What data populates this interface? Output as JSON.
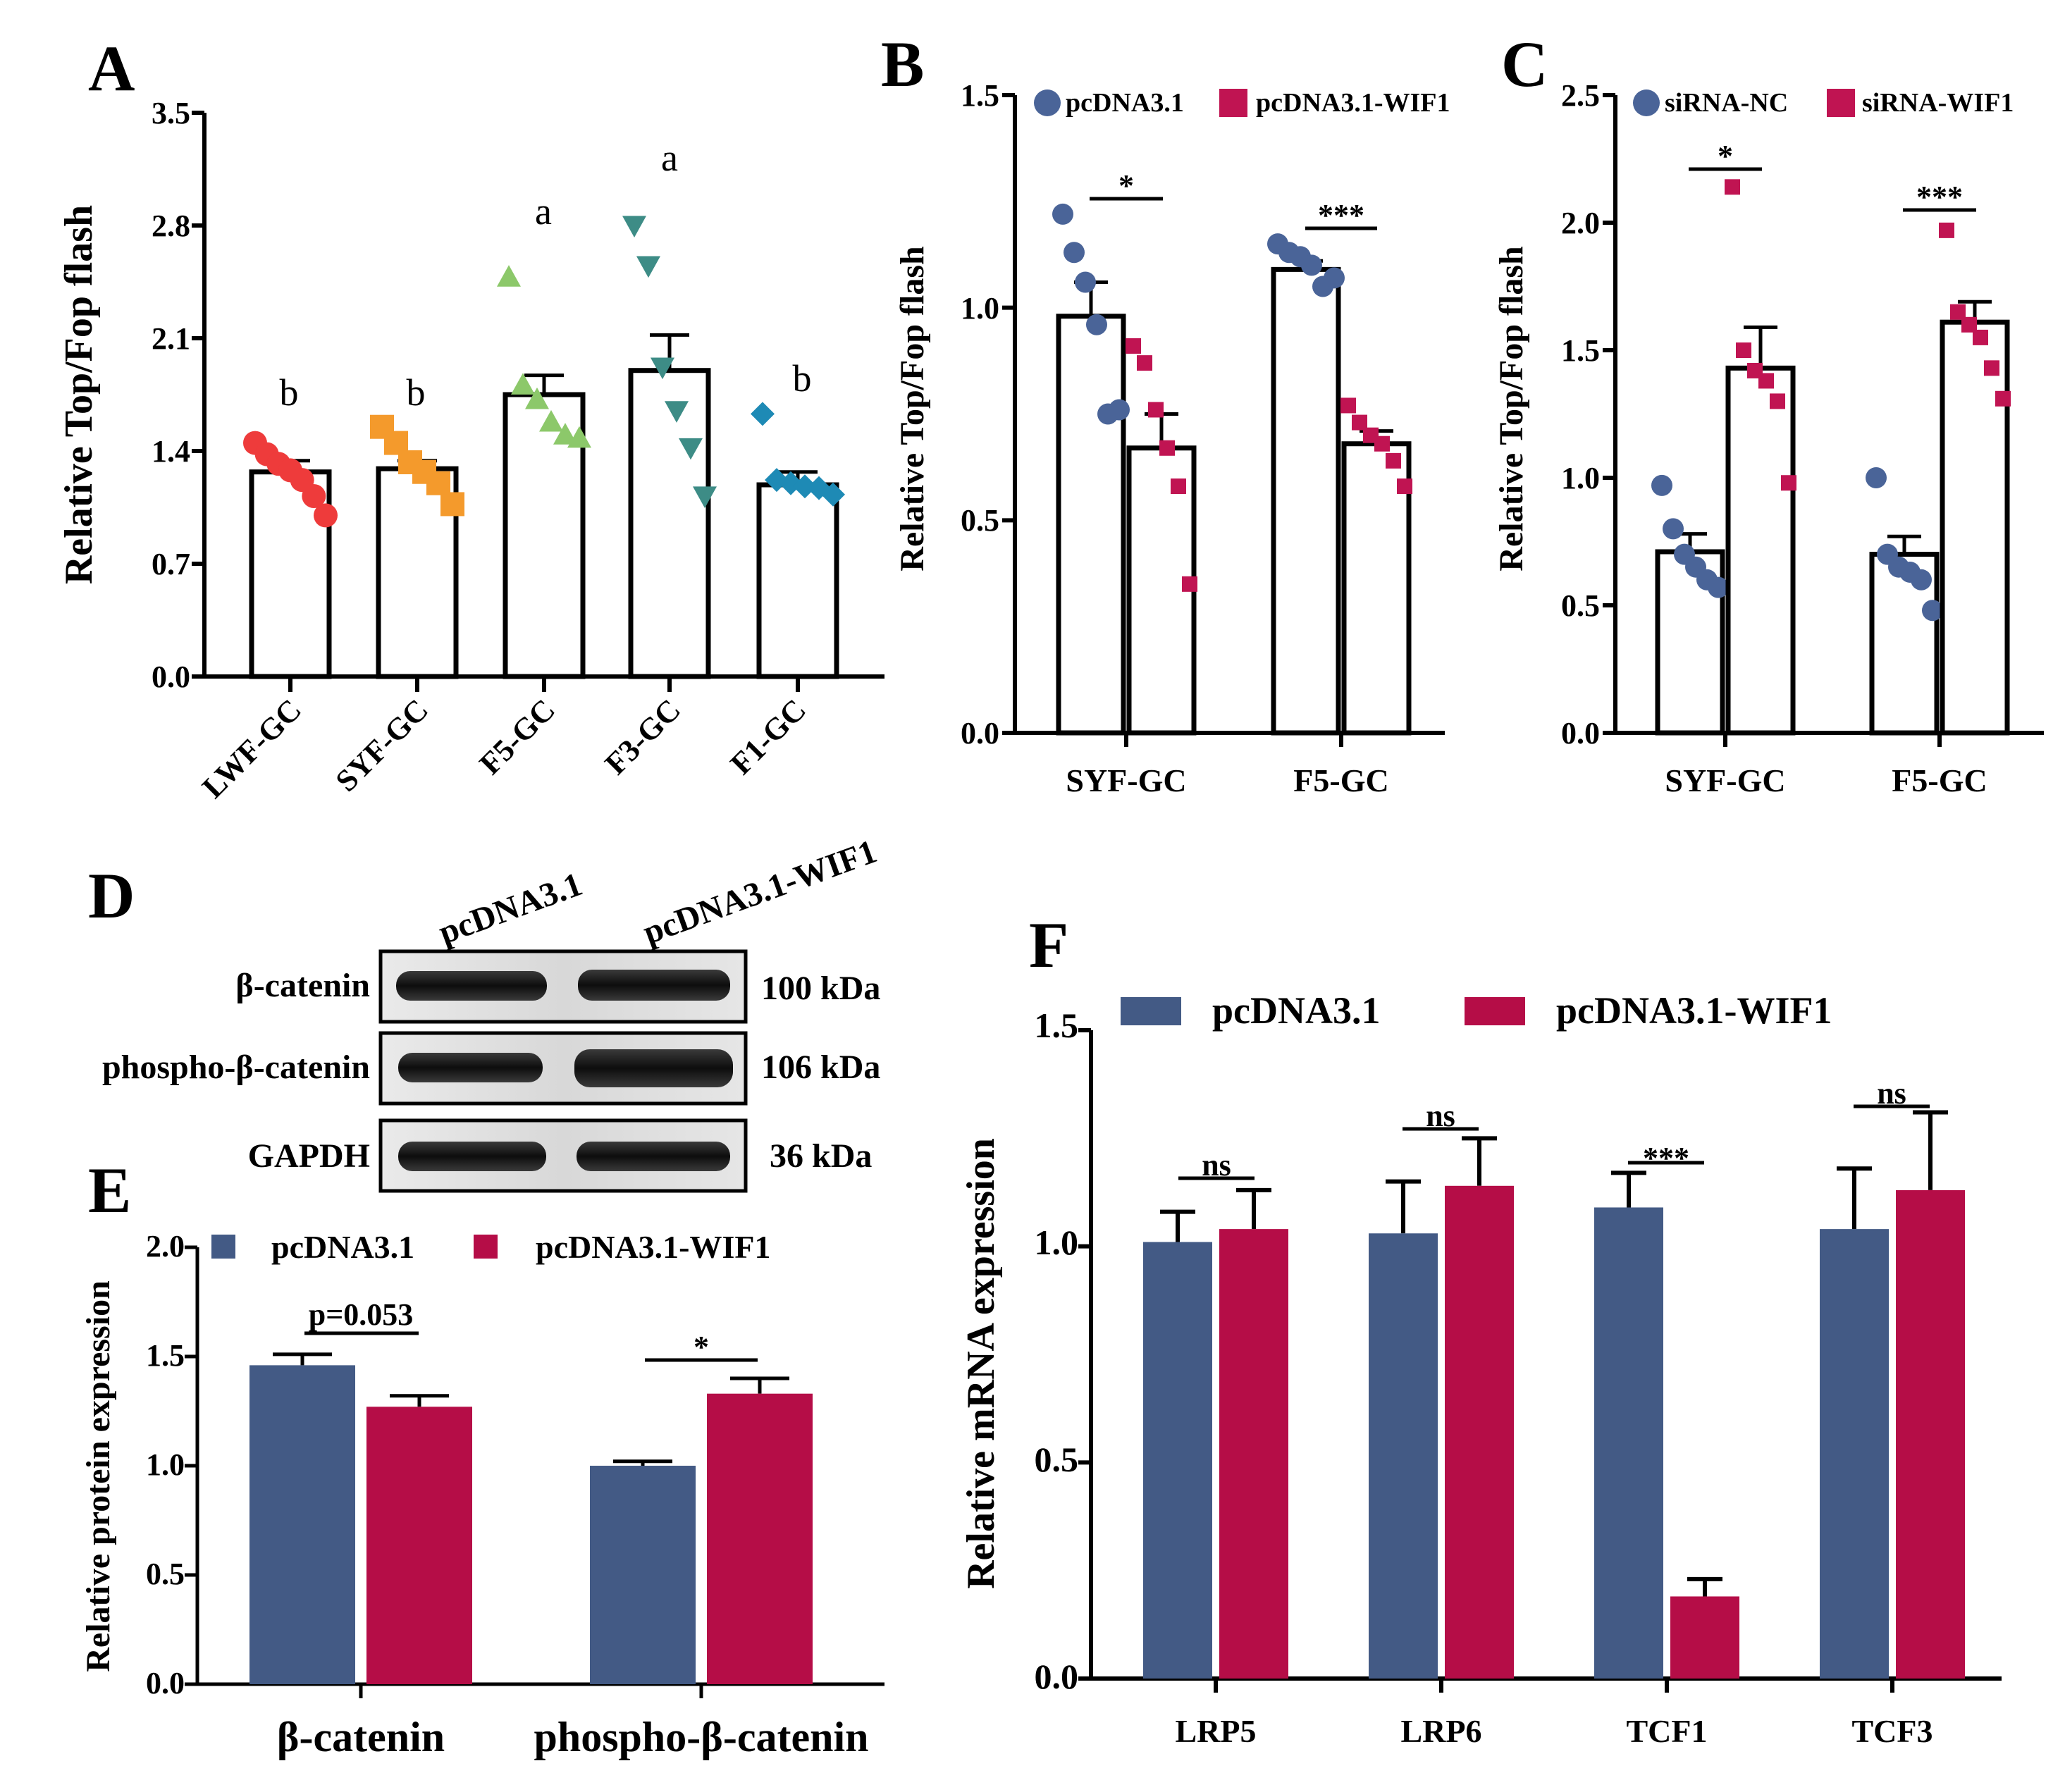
{
  "colors": {
    "blue": "#435A85",
    "red": "#B50D47",
    "dot_blue": "#4A6498",
    "dot_red": "#C01452",
    "A_red": "#EE3B3B",
    "A_orange": "#F49A2C",
    "A_green": "#8CC86A",
    "A_teal": "#3D8C86",
    "A_blue": "#1E8AB5"
  },
  "panels": {
    "A": {
      "label": "A",
      "ylabel": "Relative Top/Fop flash",
      "yticks": [
        "0.0",
        "0.7",
        "1.4",
        "2.1",
        "2.8",
        "3.5"
      ],
      "letters": [
        "b",
        "b",
        "a",
        "a",
        "b"
      ]
    },
    "B": {
      "label": "B",
      "ylabel": "Relative Top/Fop flash",
      "yticks": [
        "0.0",
        "0.5",
        "1.0",
        "1.5"
      ],
      "legend": [
        "pcDNA3.1",
        "pcDNA3.1-WIF1"
      ],
      "sig": [
        "*",
        "***"
      ]
    },
    "C": {
      "label": "C",
      "ylabel": "Relative Top/Fop flash",
      "yticks": [
        "0.0",
        "0.5",
        "1.0",
        "1.5",
        "2.0",
        "2.5"
      ],
      "legend": [
        "siRNA-NC",
        "siRNA-WIF1"
      ],
      "sig": [
        "*",
        "***"
      ]
    },
    "D": {
      "label": "D",
      "lanes": [
        "pcDNA3.1",
        "pcDNA3.1-WIF1"
      ],
      "rows": [
        "β-catenin",
        "phospho-β-catenin",
        "GAPDH"
      ],
      "kda": [
        "100 kDa",
        "106 kDa",
        "36 kDa"
      ]
    },
    "E": {
      "label": "E",
      "ylabel": "Relative protein expression",
      "yticks": [
        "0.0",
        "0.5",
        "1.0",
        "1.5",
        "2.0"
      ],
      "legend": [
        "pcDNA3.1",
        "pcDNA3.1-WIF1"
      ],
      "sig": [
        "p=0.053",
        "*"
      ]
    },
    "F": {
      "label": "F",
      "ylabel": "Relative mRNA expression",
      "yticks": [
        "0.0",
        "0.5",
        "1.0",
        "1.5"
      ],
      "legend": [
        "pcDNA3.1",
        "pcDNA3.1-WIF1"
      ],
      "sig": [
        "ns",
        "ns",
        "***",
        "ns"
      ]
    }
  },
  "chart_data": [
    {
      "id": "A",
      "type": "bar",
      "title": "",
      "xlabel": "",
      "ylabel": "Relative Top/Fop flash",
      "ylim": [
        0,
        3.5
      ],
      "categories": [
        "LWF-GC",
        "SYF-GC",
        "F5-GC",
        "F3-GC",
        "F1-GC"
      ],
      "values": [
        1.27,
        1.29,
        1.75,
        1.9,
        1.19
      ],
      "sem": [
        0.07,
        0.05,
        0.12,
        0.22,
        0.08
      ],
      "points": [
        [
          1.45,
          1.38,
          1.32,
          1.28,
          1.22,
          1.12,
          1.0
        ],
        [
          1.55,
          1.45,
          1.33,
          1.27,
          1.2,
          1.07
        ],
        [
          2.48,
          1.81,
          1.72,
          1.58,
          1.5,
          1.48
        ],
        [
          2.8,
          2.55,
          1.92,
          1.65,
          1.42,
          1.12
        ],
        [
          1.63,
          1.22,
          1.2,
          1.18,
          1.17,
          1.13
        ]
      ]
    },
    {
      "id": "B",
      "type": "bar",
      "title": "",
      "xlabel": "",
      "ylabel": "Relative Top/Fop flash",
      "ylim": [
        0,
        1.5
      ],
      "categories": [
        "SYF-GC",
        "F5-GC"
      ],
      "series": [
        {
          "name": "pcDNA3.1",
          "values": [
            0.98,
            1.09
          ],
          "sem": [
            0.08,
            0.02
          ],
          "points": [
            [
              1.22,
              1.13,
              1.06,
              0.96,
              0.75,
              0.76
            ],
            [
              1.15,
              1.13,
              1.12,
              1.1,
              1.05,
              1.07
            ]
          ]
        },
        {
          "name": "pcDNA3.1-WIF1",
          "values": [
            0.67,
            0.68
          ],
          "sem": [
            0.08,
            0.03
          ],
          "points": [
            [
              0.91,
              0.87,
              0.76,
              0.67,
              0.58,
              0.35
            ],
            [
              0.77,
              0.73,
              0.7,
              0.68,
              0.64,
              0.58
            ]
          ]
        }
      ]
    },
    {
      "id": "C",
      "type": "bar",
      "title": "",
      "xlabel": "",
      "ylabel": "Relative Top/Fop flash",
      "ylim": [
        0,
        2.5
      ],
      "categories": [
        "SYF-GC",
        "F5-GC"
      ],
      "series": [
        {
          "name": "siRNA-NC",
          "values": [
            0.71,
            0.7
          ],
          "sem": [
            0.07,
            0.07
          ],
          "points": [
            [
              0.97,
              0.8,
              0.7,
              0.65,
              0.6,
              0.57
            ],
            [
              1.0,
              0.7,
              0.65,
              0.63,
              0.6,
              0.48
            ]
          ]
        },
        {
          "name": "siRNA-WIF1",
          "values": [
            1.43,
            1.61
          ],
          "sem": [
            0.16,
            0.08
          ],
          "points": [
            [
              2.14,
              1.5,
              1.42,
              1.38,
              1.3,
              0.98
            ],
            [
              1.97,
              1.65,
              1.6,
              1.55,
              1.43,
              1.31
            ]
          ]
        }
      ]
    },
    {
      "id": "E",
      "type": "bar",
      "title": "",
      "xlabel": "",
      "ylabel": "Relative protein expression",
      "ylim": [
        0,
        2.0
      ],
      "categories": [
        "β-catenin",
        "phospho-β-catenin"
      ],
      "series": [
        {
          "name": "pcDNA3.1",
          "values": [
            1.46,
            1.0
          ],
          "sem": [
            0.05,
            0.02
          ]
        },
        {
          "name": "pcDNA3.1-WIF1",
          "values": [
            1.27,
            1.33
          ],
          "sem": [
            0.05,
            0.07
          ]
        }
      ]
    },
    {
      "id": "F",
      "type": "bar",
      "title": "",
      "xlabel": "",
      "ylabel": "Relative mRNA expression",
      "ylim": [
        0,
        1.5
      ],
      "categories": [
        "LRP5",
        "LRP6",
        "TCF1",
        "TCF3"
      ],
      "series": [
        {
          "name": "pcDNA3.1",
          "values": [
            1.01,
            1.03,
            1.09,
            1.04
          ],
          "sem": [
            0.07,
            0.12,
            0.08,
            0.14
          ]
        },
        {
          "name": "pcDNA3.1-WIF1",
          "values": [
            1.04,
            1.14,
            0.19,
            1.13
          ],
          "sem": [
            0.09,
            0.11,
            0.04,
            0.18
          ]
        }
      ]
    }
  ]
}
